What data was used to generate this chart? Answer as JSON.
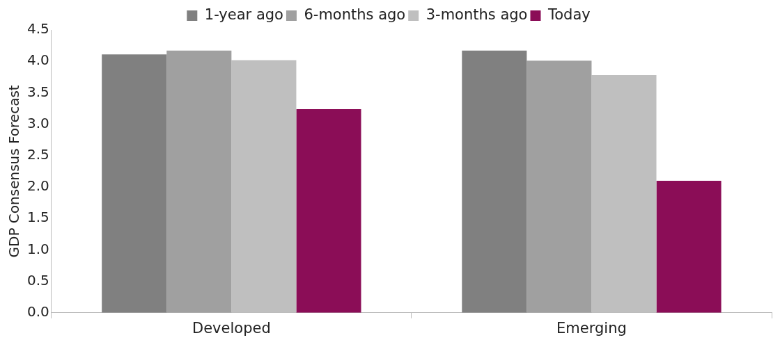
{
  "chart_data": {
    "type": "bar",
    "ylabel": "GDP Consensus Forecast",
    "categories": [
      "Developed",
      "Emerging"
    ],
    "series": [
      {
        "name": "1-year ago",
        "color": "#808080",
        "values": [
          4.11,
          4.17
        ]
      },
      {
        "name": "6-months ago",
        "color": "#a0a0a0",
        "values": [
          4.17,
          4.01
        ]
      },
      {
        "name": "3-months ago",
        "color": "#bfbfbf",
        "values": [
          4.02,
          3.78
        ]
      },
      {
        "name": "Today",
        "color": "#8b0d57",
        "values": [
          3.24,
          2.1
        ]
      }
    ],
    "ylim": [
      0,
      4.5
    ],
    "yticks": [
      {
        "value": 0,
        "label": "0.0"
      },
      {
        "value": 0.5,
        "label": "0.5"
      },
      {
        "value": 1,
        "label": "1.0"
      },
      {
        "value": 1.5,
        "label": "1.5"
      },
      {
        "value": 2,
        "label": "2.0"
      },
      {
        "value": 2.5,
        "label": "2.5"
      },
      {
        "value": 3,
        "label": "3.0"
      },
      {
        "value": 3.5,
        "label": "3.5"
      },
      {
        "value": 4,
        "label": "4.0"
      },
      {
        "value": 4.5,
        "label": "4.5"
      }
    ],
    "grid": false,
    "legend": "top"
  }
}
